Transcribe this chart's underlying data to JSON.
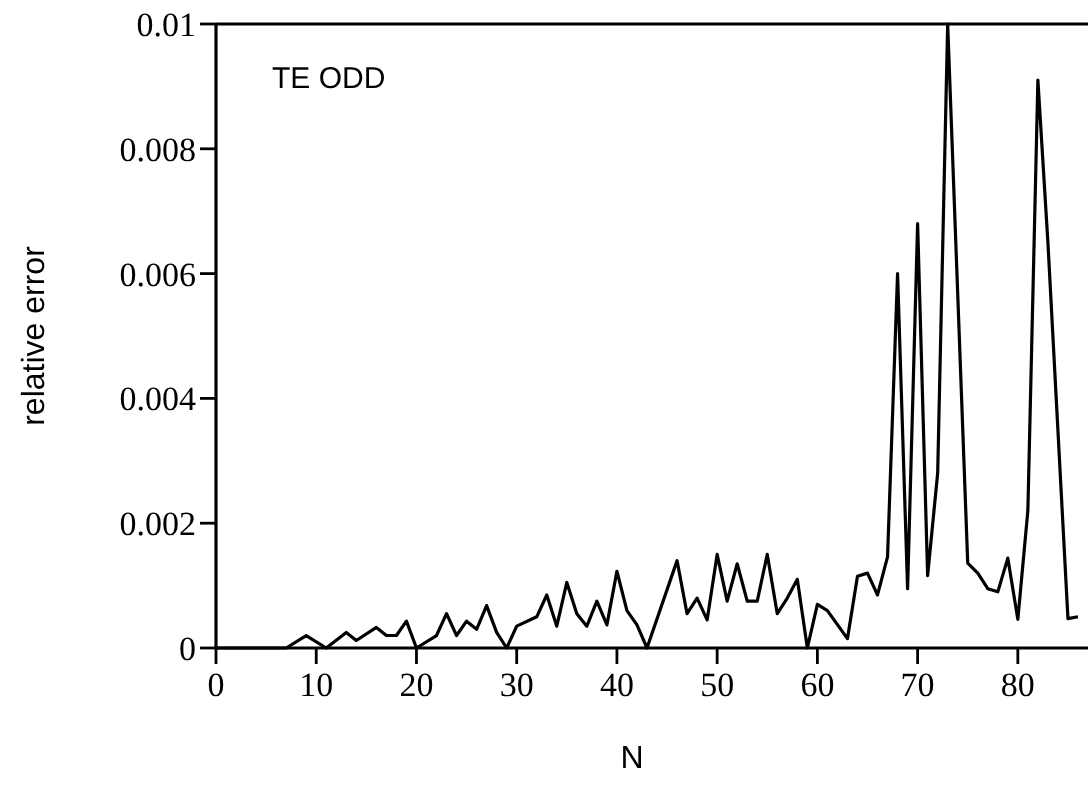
{
  "chart_data": {
    "type": "line",
    "xlabel": "N",
    "ylabel": "relative error",
    "annotations": [
      "TE ODD"
    ],
    "x": [
      0,
      3,
      5,
      7,
      9,
      11,
      13,
      14,
      16,
      17,
      18,
      19,
      20,
      22,
      23,
      24,
      25,
      26,
      27,
      28,
      29,
      30,
      32,
      33,
      34,
      35,
      36,
      37,
      38,
      39,
      40,
      41,
      42,
      43,
      46,
      47,
      48,
      49,
      50,
      51,
      52,
      53,
      54,
      55,
      56,
      57,
      58,
      59,
      60,
      61,
      63,
      64,
      65,
      66,
      67,
      68,
      69,
      70,
      71,
      72,
      73,
      75,
      76,
      77,
      78,
      79,
      80,
      81,
      82,
      83,
      85,
      86
    ],
    "series": [
      {
        "color": "#000000",
        "values": [
          0,
          0,
          0,
          0,
          0.0002,
          0,
          0.00025,
          0.00012,
          0.00033,
          0.0002,
          0.0002,
          0.00043,
          0,
          0.0002,
          0.00055,
          0.0002,
          0.00043,
          0.0003,
          0.00068,
          0.00025,
          0,
          0.00035,
          0.0005,
          0.00085,
          0.00035,
          0.00105,
          0.00055,
          0.00035,
          0.00075,
          0.00037,
          0.00123,
          0.0006,
          0.00037,
          0,
          0.0014,
          0.00055,
          0.0008,
          0.00045,
          0.0015,
          0.00075,
          0.00135,
          0.00075,
          0.00075,
          0.0015,
          0.00055,
          0.0008,
          0.0011,
          0,
          0.0007,
          0.0006,
          0.00015,
          0.00115,
          0.0012,
          0.00085,
          0.00146,
          0.006,
          0.00095,
          0.0068,
          0.00116,
          0.0028,
          0.01,
          0.00136,
          0.0012,
          0.00095,
          0.0009,
          0.00144,
          0.00046,
          0.0022,
          0.0091,
          0.0065,
          0.00047,
          0.0005
        ]
      }
    ],
    "xlim": [
      0,
      87
    ],
    "ylim": [
      0,
      0.01
    ],
    "xticks": [
      0,
      10,
      20,
      30,
      40,
      50,
      60,
      70,
      80
    ],
    "yticks": [
      0,
      0.002,
      0.004,
      0.006,
      0.008,
      0.01
    ],
    "grid": false,
    "marker": "none",
    "line_style": "solid"
  }
}
